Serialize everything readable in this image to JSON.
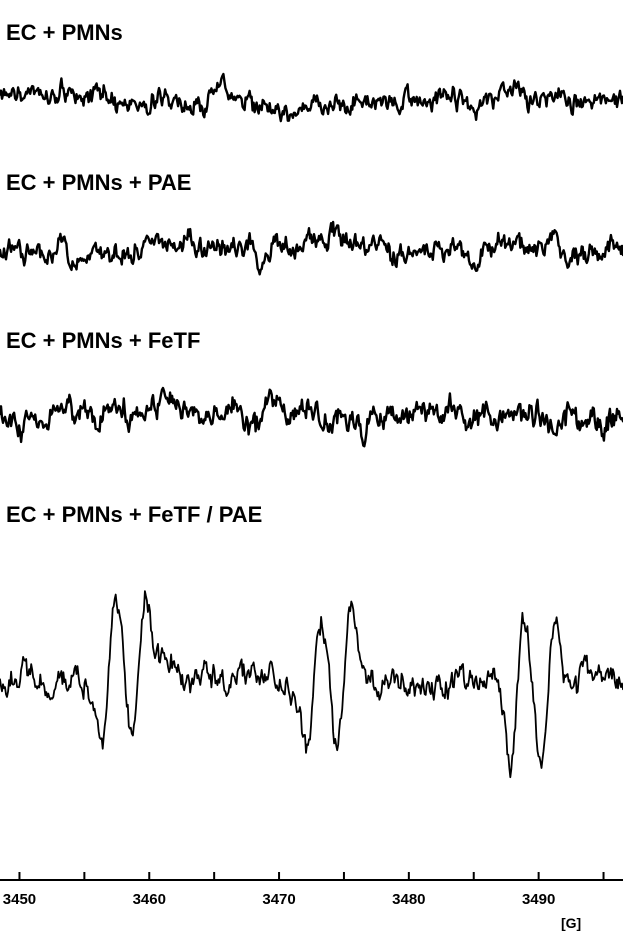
{
  "chart_data": {
    "type": "line",
    "xlabel": "",
    "x_unit": "[G]",
    "xlim": [
      3448.5,
      3496.5
    ],
    "x_ticks": [
      3450,
      3460,
      3470,
      3480,
      3490
    ],
    "x_tick_labels": [
      "3450",
      "3460",
      "3470",
      "3480",
      "3490"
    ],
    "grid": false,
    "series": [
      {
        "name": "EC + PMNs",
        "signal_peaks": [],
        "noise_amplitude": 1.0
      },
      {
        "name": "EC + PMNs + PAE",
        "signal_peaks": [],
        "noise_amplitude": 1.0
      },
      {
        "name": "EC + PMNs + FeTF",
        "signal_peaks": [],
        "noise_amplitude": 1.0
      },
      {
        "name": "EC + PMNs + FeTF / PAE",
        "signal_peaks": [
          3457.8,
          3473.6,
          3489.3
        ],
        "noise_amplitude": 1.0
      }
    ]
  }
}
